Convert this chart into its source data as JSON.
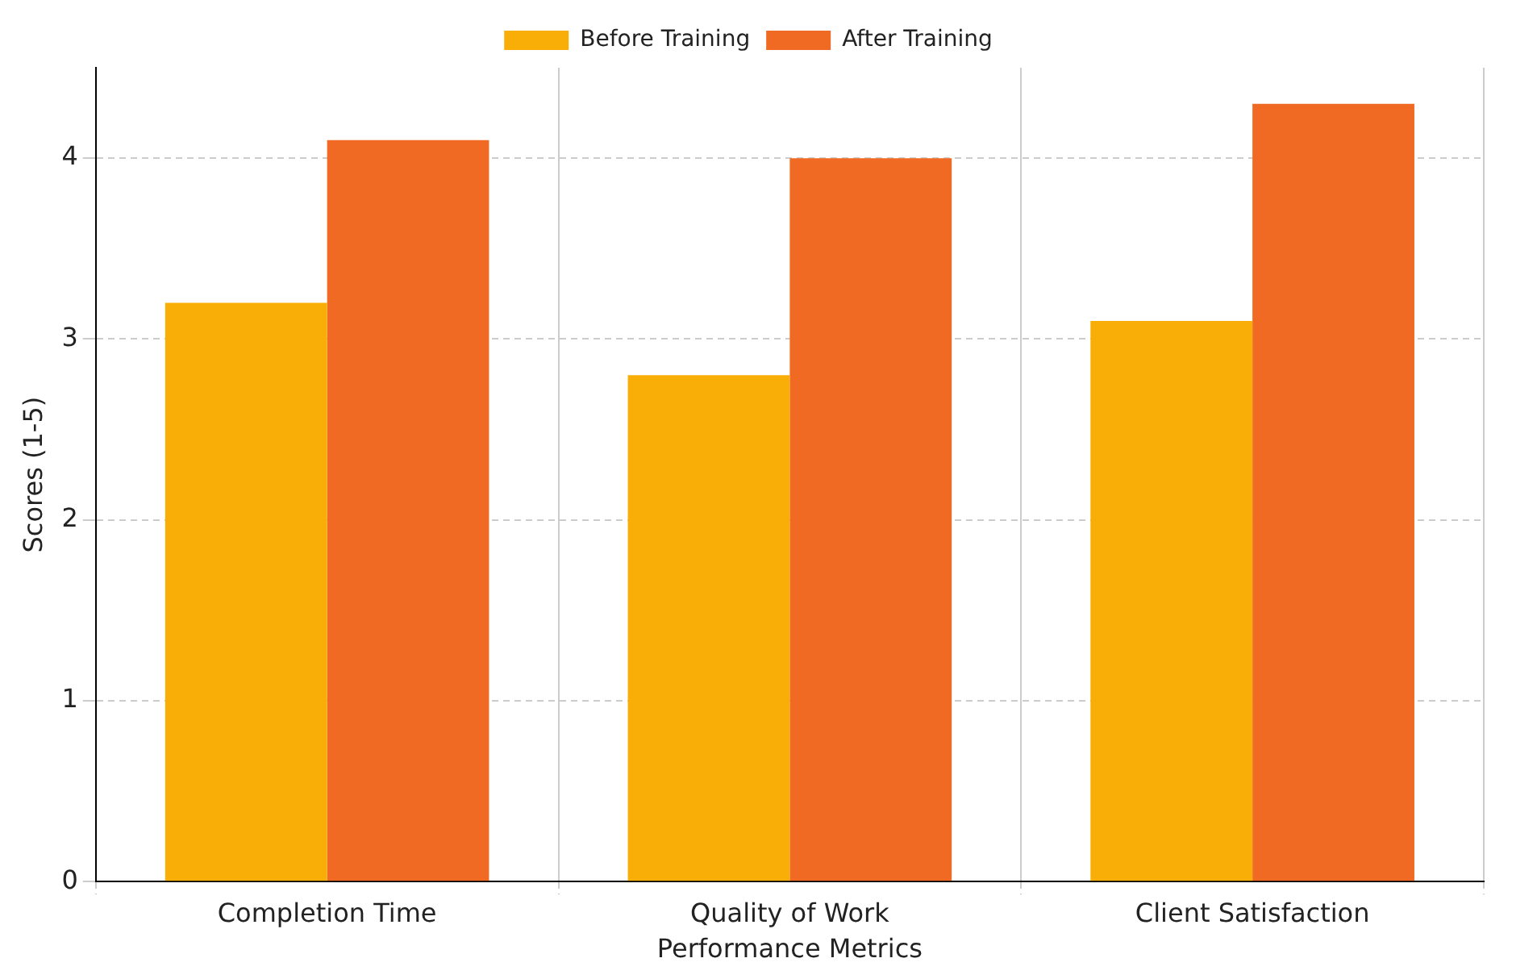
{
  "chart_data": {
    "type": "bar",
    "xlabel": "Performance Metrics",
    "ylabel": "Scores (1-5)",
    "categories": [
      "Completion Time",
      "Quality of Work",
      "Client Satisfaction"
    ],
    "series": [
      {
        "name": "Before Training",
        "color": "#f9ae07",
        "values": [
          3.2,
          2.8,
          3.1
        ]
      },
      {
        "name": "After Training",
        "color": "#f06a23",
        "values": [
          4.1,
          4.0,
          4.3
        ]
      }
    ],
    "ylim": [
      0,
      4.5
    ],
    "yticks": [
      0,
      1,
      2,
      3,
      4
    ],
    "grid": true,
    "legend": "top"
  }
}
